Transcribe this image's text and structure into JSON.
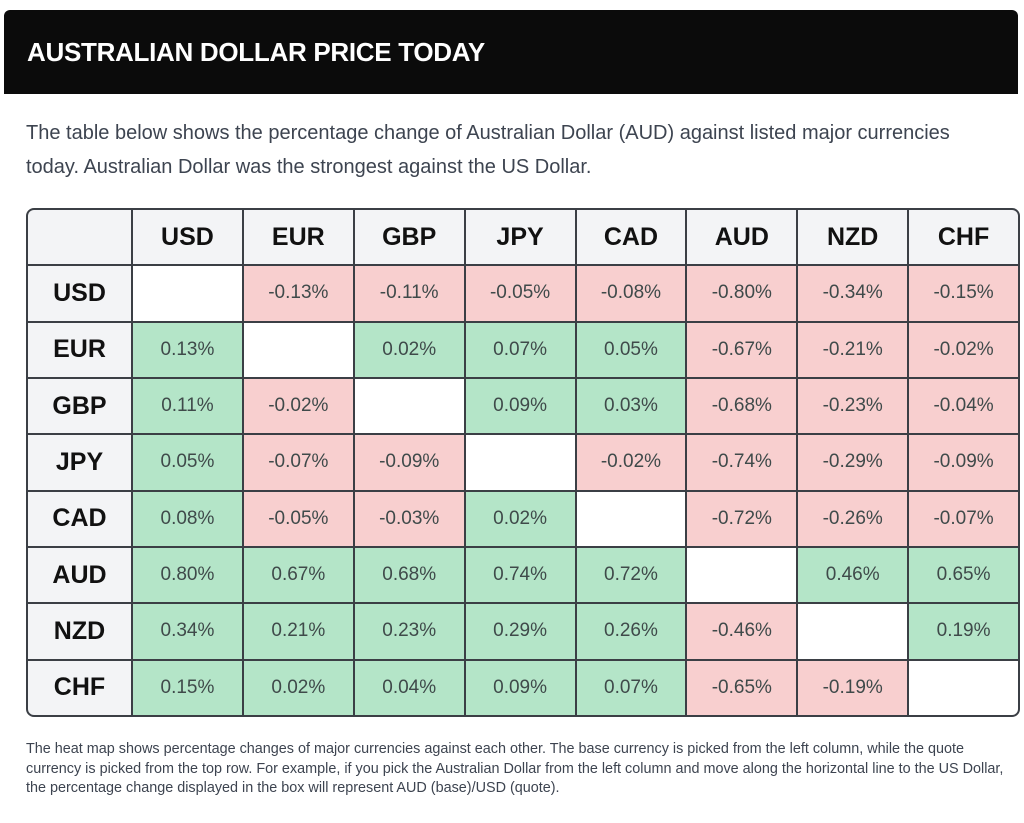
{
  "header": {
    "title": "AUSTRALIAN DOLLAR PRICE TODAY"
  },
  "intro": "The table below shows the percentage change of Australian Dollar (AUD) against listed major currencies today. Australian Dollar was the strongest against the US Dollar.",
  "colors": {
    "positive": "#b4e5c8",
    "negative": "#f8cfcf",
    "diagonal": "#ffffff",
    "header_cell": "#f3f4f6",
    "header_bar": "#0b0b0b"
  },
  "table": {
    "columns": [
      "USD",
      "EUR",
      "GBP",
      "JPY",
      "CAD",
      "AUD",
      "NZD",
      "CHF"
    ],
    "rows": [
      {
        "base": "USD",
        "values": [
          "",
          "-0.13%",
          "-0.11%",
          "-0.05%",
          "-0.08%",
          "-0.80%",
          "-0.34%",
          "-0.15%"
        ]
      },
      {
        "base": "EUR",
        "values": [
          "0.13%",
          "",
          "0.02%",
          "0.07%",
          "0.05%",
          "-0.67%",
          "-0.21%",
          "-0.02%"
        ]
      },
      {
        "base": "GBP",
        "values": [
          "0.11%",
          "-0.02%",
          "",
          "0.09%",
          "0.03%",
          "-0.68%",
          "-0.23%",
          "-0.04%"
        ]
      },
      {
        "base": "JPY",
        "values": [
          "0.05%",
          "-0.07%",
          "-0.09%",
          "",
          "-0.02%",
          "-0.74%",
          "-0.29%",
          "-0.09%"
        ]
      },
      {
        "base": "CAD",
        "values": [
          "0.08%",
          "-0.05%",
          "-0.03%",
          "0.02%",
          "",
          "-0.72%",
          "-0.26%",
          "-0.07%"
        ]
      },
      {
        "base": "AUD",
        "values": [
          "0.80%",
          "0.67%",
          "0.68%",
          "0.74%",
          "0.72%",
          "",
          "0.46%",
          "0.65%"
        ]
      },
      {
        "base": "NZD",
        "values": [
          "0.34%",
          "0.21%",
          "0.23%",
          "0.29%",
          "0.26%",
          "-0.46%",
          "",
          "0.19%"
        ]
      },
      {
        "base": "CHF",
        "values": [
          "0.15%",
          "0.02%",
          "0.04%",
          "0.09%",
          "0.07%",
          "-0.65%",
          "-0.19%",
          ""
        ]
      }
    ]
  },
  "footnote": "The heat map shows percentage changes of major currencies against each other. The base currency is picked from the left column, while the quote currency is picked from the top row. For example, if you pick the Australian Dollar from the left column and move along the horizontal line to the US Dollar, the percentage change displayed in the box will represent AUD (base)/USD (quote)."
}
